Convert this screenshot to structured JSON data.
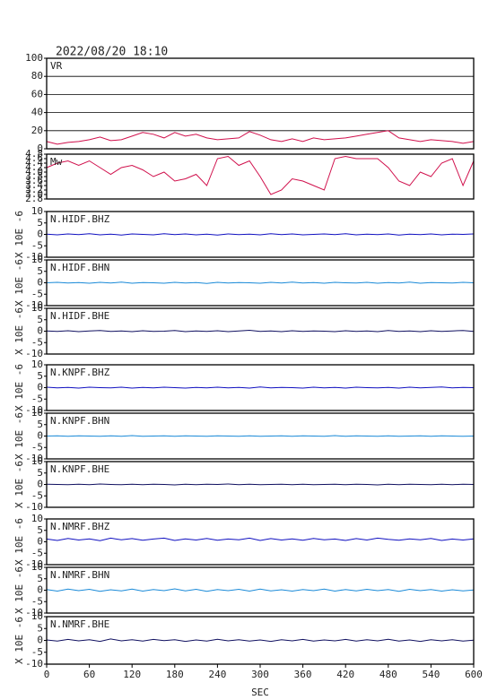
{
  "chart_data": [
    {
      "type": "line",
      "title": "VR",
      "x": [
        0,
        15,
        30,
        45,
        60,
        75,
        90,
        105,
        120,
        135,
        150,
        165,
        180,
        195,
        210,
        225,
        240,
        255,
        270,
        285,
        300,
        315,
        330,
        345,
        360,
        375,
        390,
        405,
        420,
        435,
        450,
        465,
        480,
        495,
        510,
        525,
        540,
        555,
        570,
        585,
        600
      ],
      "values": [
        8,
        5,
        7,
        8,
        10,
        13,
        9,
        10,
        14,
        18,
        16,
        12,
        18,
        14,
        16,
        12,
        10,
        11,
        12,
        19,
        15,
        10,
        8,
        11,
        8,
        12,
        10,
        11,
        12,
        14,
        16,
        18,
        20,
        12,
        10,
        8,
        10,
        9,
        8,
        6,
        8
      ],
      "color": "#d0104c",
      "xlim": [
        0,
        600
      ],
      "ylim": [
        0,
        100
      ],
      "yticks": [
        0,
        20,
        40,
        60,
        80,
        100
      ],
      "grid": true
    },
    {
      "type": "line",
      "title": "Mw",
      "x": [
        0,
        15,
        30,
        45,
        60,
        75,
        90,
        105,
        120,
        135,
        150,
        165,
        180,
        195,
        210,
        225,
        240,
        255,
        270,
        285,
        300,
        315,
        330,
        345,
        360,
        375,
        390,
        405,
        420,
        435,
        450,
        465,
        480,
        495,
        510,
        525,
        540,
        555,
        570,
        585,
        600
      ],
      "values": [
        4.2,
        4.4,
        4.5,
        4.3,
        4.5,
        4.2,
        3.9,
        4.2,
        4.3,
        4.1,
        3.8,
        4.0,
        3.6,
        3.7,
        3.9,
        3.4,
        4.6,
        4.7,
        4.3,
        4.5,
        3.8,
        3.0,
        3.2,
        3.7,
        3.6,
        3.4,
        3.2,
        4.6,
        4.7,
        4.6,
        4.6,
        4.6,
        4.2,
        3.6,
        3.4,
        4.0,
        3.8,
        4.4,
        4.6,
        3.4,
        4.5
      ],
      "color": "#d0104c",
      "xlim": [
        0,
        600
      ],
      "ylim": [
        2.8,
        4.8
      ],
      "yticks": [
        2.8,
        {
          "value": 3,
          "label": "3.0"
        },
        3.2,
        3.4,
        3.6,
        3.8,
        {
          "value": 4,
          "label": "4.0"
        },
        4.2,
        4.4,
        4.6,
        4.8
      ],
      "grid": false
    },
    {
      "type": "line",
      "title": "N.HIDF.BHZ",
      "ylabel": "X 10E -6",
      "x": [
        0,
        15,
        30,
        45,
        60,
        75,
        90,
        105,
        120,
        135,
        150,
        165,
        180,
        195,
        210,
        225,
        240,
        255,
        270,
        285,
        300,
        315,
        330,
        345,
        360,
        375,
        390,
        405,
        420,
        435,
        450,
        465,
        480,
        495,
        510,
        525,
        540,
        555,
        570,
        585,
        600
      ],
      "values": [
        0.1,
        -0.2,
        0.2,
        -0.1,
        0.3,
        -0.2,
        0.1,
        -0.3,
        0.2,
        0,
        -0.2,
        0.3,
        -0.1,
        0.2,
        -0.2,
        0.1,
        -0.3,
        0.2,
        -0.1,
        0.1,
        -0.2,
        0.3,
        -0.1,
        0.2,
        -0.2,
        0,
        0.2,
        -0.1,
        0.3,
        -0.2,
        0.1,
        -0.1,
        0.2,
        -0.3,
        0.1,
        -0.1,
        0.2,
        -0.2,
        0.1,
        0,
        0.2
      ],
      "color": "#1010c0",
      "xlim": [
        0,
        600
      ],
      "ylim": [
        -10,
        10
      ],
      "yticks": [
        -10,
        -5,
        0,
        5,
        10
      ],
      "grid": false
    },
    {
      "type": "line",
      "title": "N.HIDF.BHN",
      "ylabel": "X 10E -6",
      "x": [
        0,
        15,
        30,
        45,
        60,
        75,
        90,
        105,
        120,
        135,
        150,
        165,
        180,
        195,
        210,
        225,
        240,
        255,
        270,
        285,
        300,
        315,
        330,
        345,
        360,
        375,
        390,
        405,
        420,
        435,
        450,
        465,
        480,
        495,
        510,
        525,
        540,
        555,
        570,
        585,
        600
      ],
      "values": [
        0,
        0.2,
        -0.1,
        0.1,
        -0.2,
        0.2,
        -0.1,
        0.3,
        -0.2,
        0.1,
        0,
        -0.2,
        0.2,
        -0.1,
        0.1,
        -0.3,
        0.2,
        -0.1,
        0.1,
        0,
        -0.2,
        0.2,
        -0.1,
        0.3,
        -0.1,
        0.1,
        -0.2,
        0.2,
        0,
        -0.1,
        0.2,
        -0.2,
        0.1,
        -0.1,
        0.3,
        -0.2,
        0.1,
        0,
        -0.1,
        0.2,
        0
      ],
      "color": "#1a8ad8",
      "xlim": [
        0,
        600
      ],
      "ylim": [
        -10,
        10
      ],
      "yticks": [
        -10,
        -5,
        0,
        5,
        10
      ],
      "grid": false
    },
    {
      "type": "line",
      "title": "N.HIDF.BHE",
      "ylabel": "X 10E -6",
      "x": [
        0,
        15,
        30,
        45,
        60,
        75,
        90,
        105,
        120,
        135,
        150,
        165,
        180,
        195,
        210,
        225,
        240,
        255,
        270,
        285,
        300,
        315,
        330,
        345,
        360,
        375,
        390,
        405,
        420,
        435,
        450,
        465,
        480,
        495,
        510,
        525,
        540,
        555,
        570,
        585,
        600
      ],
      "values": [
        0.1,
        -0.1,
        0.2,
        -0.2,
        0.1,
        0.3,
        -0.1,
        0.1,
        -0.2,
        0.2,
        -0.1,
        0,
        0.3,
        -0.2,
        0.1,
        -0.1,
        0.2,
        -0.2,
        0.1,
        0.4,
        -0.1,
        0.1,
        -0.2,
        0.2,
        -0.1,
        0.1,
        0,
        -0.2,
        0.2,
        -0.1,
        0.1,
        -0.2,
        0.3,
        -0.1,
        0.1,
        -0.2,
        0.2,
        -0.1,
        0.1,
        0.3,
        -0.1
      ],
      "color": "#101060",
      "xlim": [
        0,
        600
      ],
      "ylim": [
        -10,
        10
      ],
      "yticks": [
        -10,
        -5,
        0,
        5,
        10
      ],
      "grid": false
    },
    {
      "type": "line",
      "title": "N.KNPF.BHZ",
      "ylabel": "X 10E -6",
      "x": [
        0,
        15,
        30,
        45,
        60,
        75,
        90,
        105,
        120,
        135,
        150,
        165,
        180,
        195,
        210,
        225,
        240,
        255,
        270,
        285,
        300,
        315,
        330,
        345,
        360,
        375,
        390,
        405,
        420,
        435,
        450,
        465,
        480,
        495,
        510,
        525,
        540,
        555,
        570,
        585,
        600
      ],
      "values": [
        0.2,
        -0.1,
        0.1,
        -0.2,
        0.2,
        0,
        -0.1,
        0.2,
        -0.2,
        0.1,
        -0.1,
        0.2,
        0,
        -0.2,
        0.1,
        -0.1,
        0.2,
        -0.1,
        0.1,
        -0.2,
        0.3,
        -0.1,
        0.1,
        0,
        -0.2,
        0.2,
        -0.1,
        0.1,
        -0.2,
        0.2,
        0,
        -0.1,
        0.1,
        -0.2,
        0.2,
        -0.1,
        0.1,
        0.3,
        -0.1,
        0.1,
        0
      ],
      "color": "#1010c0",
      "xlim": [
        0,
        600
      ],
      "ylim": [
        -10,
        10
      ],
      "yticks": [
        -10,
        -5,
        0,
        5,
        10
      ],
      "grid": false
    },
    {
      "type": "line",
      "title": "N.KNPF.BHN",
      "ylabel": "X 10E -6",
      "x": [
        0,
        15,
        30,
        45,
        60,
        75,
        90,
        105,
        120,
        135,
        150,
        165,
        180,
        195,
        210,
        225,
        240,
        255,
        270,
        285,
        300,
        315,
        330,
        345,
        360,
        375,
        390,
        405,
        420,
        435,
        450,
        465,
        480,
        495,
        510,
        525,
        540,
        555,
        570,
        585,
        600
      ],
      "values": [
        0,
        0.1,
        -0.1,
        0.1,
        0,
        -0.1,
        0.1,
        -0.1,
        0.2,
        -0.1,
        0,
        0.1,
        -0.1,
        0.1,
        0,
        -0.1,
        0.1,
        0,
        -0.1,
        0.1,
        -0.1,
        0,
        0.1,
        -0.1,
        0.1,
        0,
        -0.1,
        0.2,
        -0.1,
        0.1,
        0,
        -0.1,
        0.1,
        -0.1,
        0,
        0.1,
        -0.1,
        0.1,
        0,
        -0.1,
        0
      ],
      "color": "#1a8ad8",
      "xlim": [
        0,
        600
      ],
      "ylim": [
        -10,
        10
      ],
      "yticks": [
        -10,
        -5,
        0,
        5,
        10
      ],
      "grid": false
    },
    {
      "type": "line",
      "title": "N.KNPF.BHE",
      "ylabel": "X 10E -6",
      "x": [
        0,
        15,
        30,
        45,
        60,
        75,
        90,
        105,
        120,
        135,
        150,
        165,
        180,
        195,
        210,
        225,
        240,
        255,
        270,
        285,
        300,
        315,
        330,
        345,
        360,
        375,
        390,
        405,
        420,
        435,
        450,
        465,
        480,
        495,
        510,
        525,
        540,
        555,
        570,
        585,
        600
      ],
      "values": [
        0.1,
        0,
        -0.1,
        0.1,
        -0.1,
        0.2,
        0,
        -0.1,
        0.1,
        -0.1,
        0.1,
        0,
        -0.2,
        0.1,
        -0.1,
        0.1,
        0,
        0.2,
        -0.1,
        0.1,
        -0.1,
        0,
        0.1,
        -0.1,
        0.1,
        -0.1,
        0,
        0.1,
        -0.1,
        0.1,
        0,
        -0.2,
        0.1,
        -0.1,
        0.1,
        0,
        -0.1,
        0.1,
        -0.1,
        0.1,
        0
      ],
      "color": "#101060",
      "xlim": [
        0,
        600
      ],
      "ylim": [
        -10,
        10
      ],
      "yticks": [
        -10,
        -5,
        0,
        5,
        10
      ],
      "grid": false
    },
    {
      "type": "line",
      "title": "N.NMRF.BHZ",
      "ylabel": "X 10E -6",
      "x": [
        0,
        15,
        30,
        45,
        60,
        75,
        90,
        105,
        120,
        135,
        150,
        165,
        180,
        195,
        210,
        225,
        240,
        255,
        270,
        285,
        300,
        315,
        330,
        345,
        360,
        375,
        390,
        405,
        420,
        435,
        450,
        465,
        480,
        495,
        510,
        525,
        540,
        555,
        570,
        585,
        600
      ],
      "values": [
        1.2,
        0.6,
        1.5,
        0.8,
        1.3,
        0.5,
        1.6,
        0.9,
        1.4,
        0.7,
        1.2,
        1.6,
        0.6,
        1.3,
        0.8,
        1.5,
        0.7,
        1.2,
        0.9,
        1.6,
        0.6,
        1.4,
        0.8,
        1.3,
        0.7,
        1.5,
        0.9,
        1.2,
        0.6,
        1.4,
        0.8,
        1.6,
        1.1,
        0.7,
        1.3,
        0.9,
        1.5,
        0.6,
        1.2,
        0.8,
        1.3
      ],
      "color": "#1010c0",
      "xlim": [
        0,
        600
      ],
      "ylim": [
        -10,
        10
      ],
      "yticks": [
        -10,
        -5,
        0,
        5,
        10
      ],
      "grid": false
    },
    {
      "type": "line",
      "title": "N.NMRF.BHN",
      "ylabel": "X 10E -6",
      "x": [
        0,
        15,
        30,
        45,
        60,
        75,
        90,
        105,
        120,
        135,
        150,
        165,
        180,
        195,
        210,
        225,
        240,
        255,
        270,
        285,
        300,
        315,
        330,
        345,
        360,
        375,
        390,
        405,
        420,
        435,
        450,
        465,
        480,
        495,
        510,
        525,
        540,
        555,
        570,
        585,
        600
      ],
      "values": [
        0.3,
        -0.4,
        0.5,
        -0.2,
        0.4,
        -0.5,
        0.2,
        -0.3,
        0.5,
        -0.4,
        0.3,
        -0.2,
        0.6,
        -0.3,
        0.4,
        -0.5,
        0.3,
        -0.2,
        0.4,
        -0.4,
        0.5,
        -0.3,
        0.2,
        -0.4,
        0.3,
        -0.2,
        0.5,
        -0.4,
        0.3,
        -0.3,
        0.4,
        -0.2,
        0.3,
        -0.5,
        0.4,
        -0.2,
        0.3,
        -0.4,
        0.2,
        -0.3,
        0.1
      ],
      "color": "#1a8ad8",
      "xlim": [
        0,
        600
      ],
      "ylim": [
        -10,
        10
      ],
      "yticks": [
        -10,
        -5,
        0,
        5,
        10
      ],
      "grid": false
    },
    {
      "type": "line",
      "title": "N.NMRF.BHE",
      "ylabel": "X 10E -6",
      "xlabel": "SEC",
      "x": [
        0,
        15,
        30,
        45,
        60,
        75,
        90,
        105,
        120,
        135,
        150,
        165,
        180,
        195,
        210,
        225,
        240,
        255,
        270,
        285,
        300,
        315,
        330,
        345,
        360,
        375,
        390,
        405,
        420,
        435,
        450,
        465,
        480,
        495,
        510,
        525,
        540,
        555,
        570,
        585,
        600
      ],
      "values": [
        0.2,
        -0.3,
        0.4,
        -0.2,
        0.3,
        -0.4,
        0.6,
        -0.2,
        0.3,
        -0.3,
        0.4,
        -0.1,
        0.3,
        -0.4,
        0.2,
        -0.3,
        0.5,
        -0.2,
        0.3,
        -0.3,
        0.2,
        -0.4,
        0.3,
        -0.2,
        0.4,
        -0.3,
        0.2,
        -0.2,
        0.4,
        -0.3,
        0.3,
        -0.2,
        0.5,
        -0.3,
        0.2,
        -0.4,
        0.3,
        -0.2,
        0.3,
        -0.3,
        0.1
      ],
      "color": "#101060",
      "xlim": [
        0,
        600
      ],
      "ylim": [
        -10,
        10
      ],
      "yticks": [
        -10,
        -5,
        0,
        5,
        10
      ],
      "xticks": [
        0,
        60,
        120,
        180,
        240,
        300,
        360,
        420,
        480,
        540,
        600
      ],
      "grid": false
    }
  ],
  "header": {
    "datetime": "2022/08/20 18:10"
  }
}
